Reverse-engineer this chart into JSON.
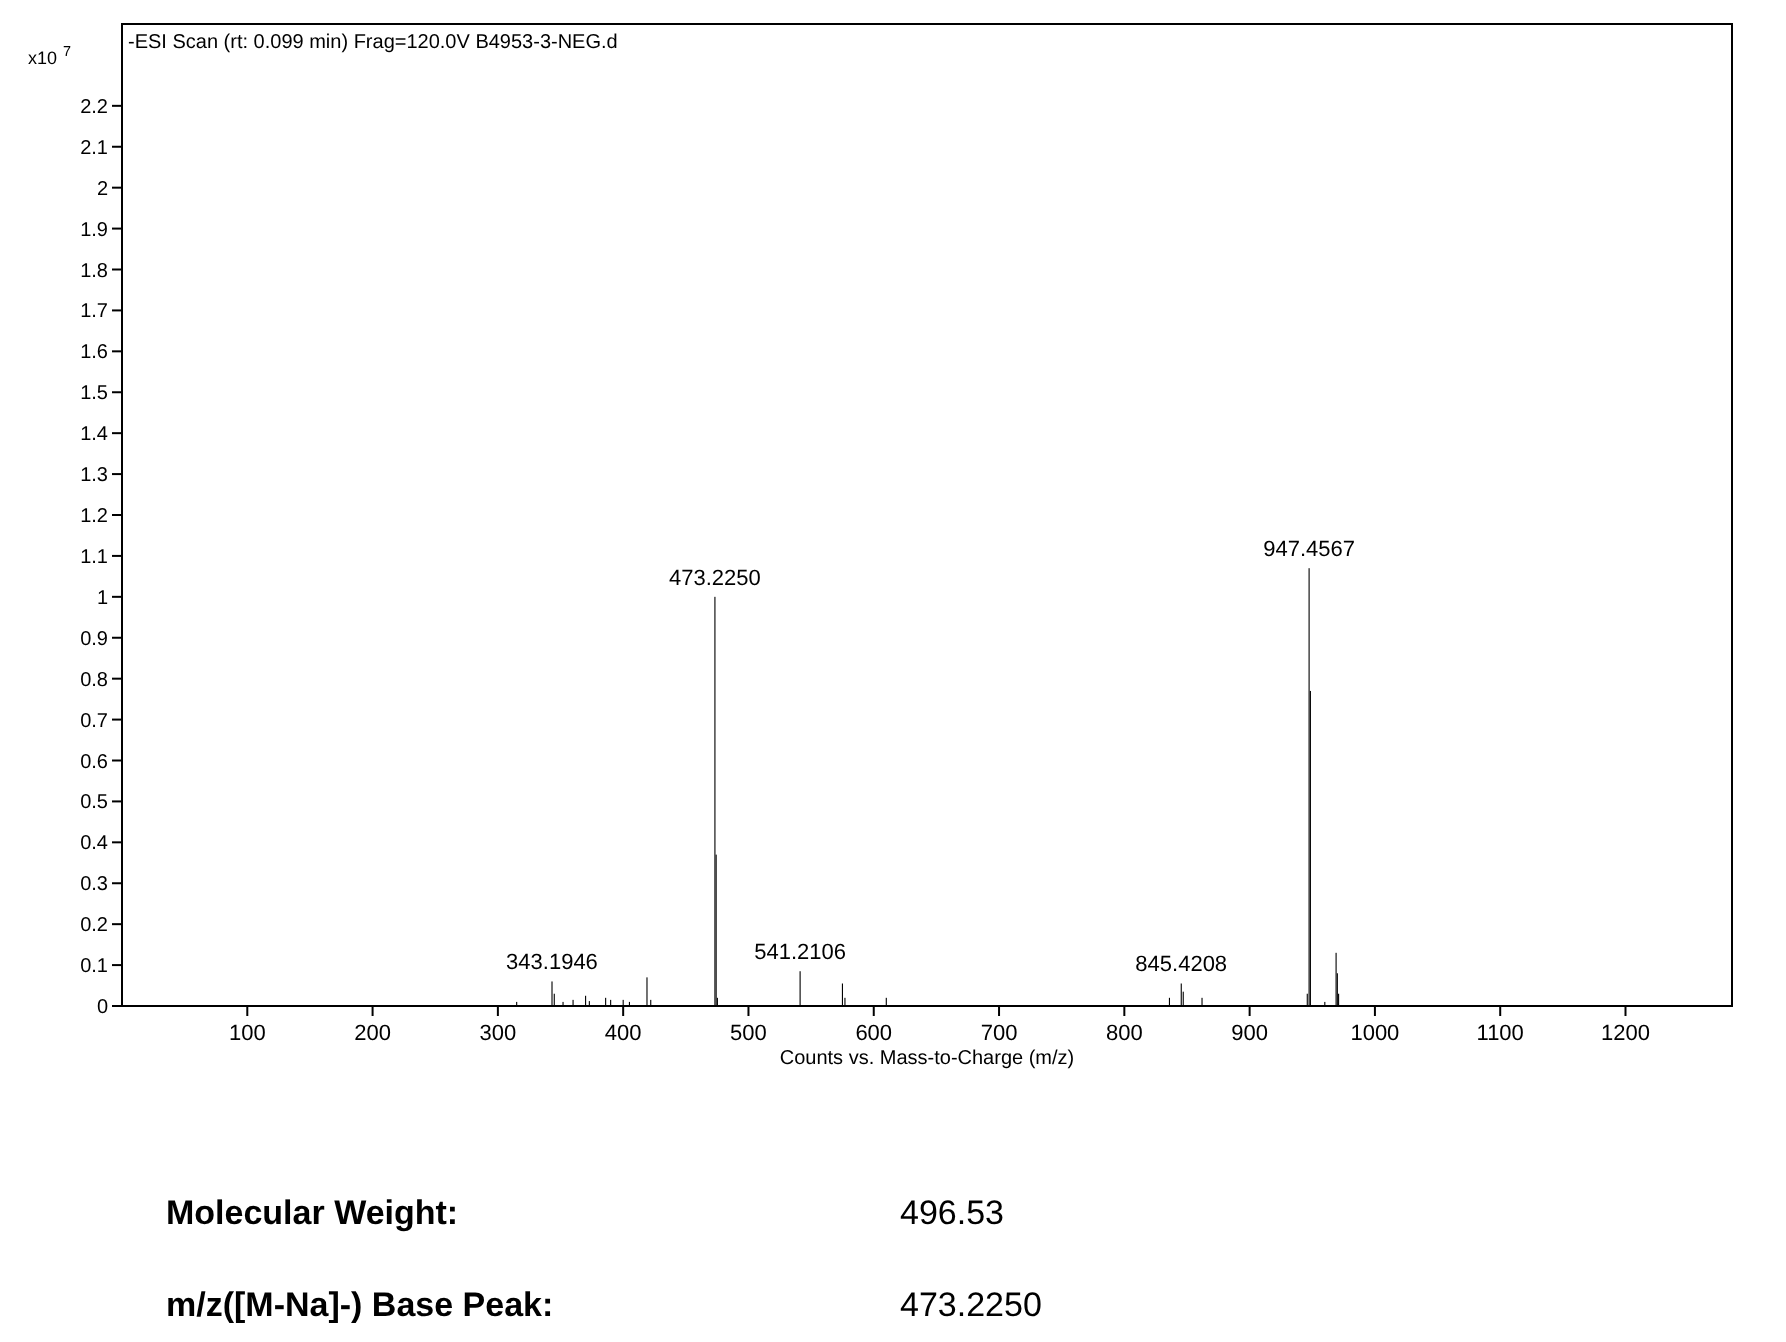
{
  "chart_data": {
    "type": "bar",
    "title": "-ESI Scan (rt: 0.099 min) Frag=120.0V B4953-3-NEG.d",
    "xlabel": "Counts vs. Mass-to-Charge (m/z)",
    "ylabel": "x10$^{7}$",
    "x": [
      315,
      343.1946,
      345,
      352,
      360,
      370,
      373,
      386,
      390,
      400,
      405,
      419,
      422,
      473.225,
      474.2,
      475.2,
      541.2106,
      575,
      577,
      610,
      836,
      845.4208,
      847,
      862,
      946,
      947.4567,
      948.5,
      960,
      969,
      970,
      971
    ],
    "series": [
      {
        "color": "#000000",
        "values": [
          0.01,
          0.06,
          0.03,
          0.01,
          0.015,
          0.025,
          0.012,
          0.02,
          0.015,
          0.015,
          0.01,
          0.07,
          0.015,
          1.0,
          0.37,
          0.02,
          0.085,
          0.055,
          0.02,
          0.02,
          0.02,
          0.055,
          0.035,
          0.02,
          0.03,
          1.07,
          0.77,
          0.01,
          0.13,
          0.08,
          0.03
        ]
      }
    ],
    "xlim": [
      0,
      1285
    ],
    "ylim": [
      0,
      2.4
    ],
    "xticks": [
      100,
      200,
      300,
      400,
      500,
      600,
      700,
      800,
      900,
      1000,
      1100,
      1200
    ],
    "yticks": [
      0,
      0.1,
      0.2,
      0.3,
      0.4,
      0.5,
      0.6,
      0.7,
      0.8,
      0.9,
      1,
      1.1,
      1.2,
      1.3,
      1.4,
      1.5,
      1.6,
      1.7,
      1.8,
      1.9,
      2,
      2.1,
      2.2
    ],
    "annotations": [
      {
        "text": "343.1946",
        "x": 343.1946,
        "y": 0.06
      },
      {
        "text": "473.2250",
        "x": 473.225,
        "y": 1.0
      },
      {
        "text": "541.2106",
        "x": 541.2106,
        "y": 0.085
      },
      {
        "text": "845.4208",
        "x": 845.4208,
        "y": 0.055
      },
      {
        "text": "947.4567",
        "x": 947.4567,
        "y": 1.07
      },
      "Molecular Weight:",
      "496.53",
      "m/z([M-Na]-) Base Peak:",
      "473.2250"
    ]
  }
}
